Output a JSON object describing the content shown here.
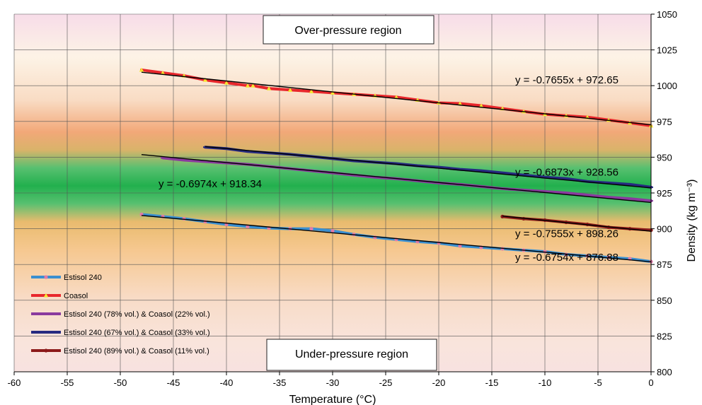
{
  "chart_data": {
    "type": "line",
    "xlabel": "Temperature (°C)",
    "ylabel": "Density (kg m⁻³)",
    "xlim": [
      -60,
      0
    ],
    "ylim": [
      800,
      1050
    ],
    "x_ticks": [
      -60,
      -55,
      -50,
      -45,
      -40,
      -35,
      -30,
      -25,
      -20,
      -15,
      -10,
      -5,
      0
    ],
    "y_ticks": [
      800,
      825,
      850,
      875,
      900,
      925,
      950,
      975,
      1000,
      1025,
      1050
    ],
    "grid": true,
    "legend_position": "bottom-left",
    "regions": {
      "over_label": "Over-pressure region",
      "under_label": "Under-pressure region"
    },
    "series": [
      {
        "name": "Estisol 240",
        "color": "#3a8fd0",
        "marker_color": "#e07aa8",
        "marker": "circle",
        "x": [
          -48,
          -46,
          -44,
          -42,
          -40,
          -38,
          -36,
          -34,
          -32,
          -30,
          -28,
          -26,
          -24,
          -22,
          -20,
          -18,
          -16,
          -14,
          -12,
          -10,
          -8,
          -6,
          -4,
          -2,
          0
        ],
        "y": [
          910,
          908.5,
          907,
          905,
          903,
          901.5,
          900.5,
          900,
          900,
          898.5,
          896,
          894,
          892.5,
          891,
          890,
          888,
          887,
          886,
          885,
          884,
          882,
          881,
          880,
          879,
          877
        ],
        "fit_label": "y = -0.6754x + 876.88",
        "fit": {
          "slope": -0.6754,
          "intercept": 876.88,
          "x_range": [
            -48,
            0
          ]
        }
      },
      {
        "name": "Coasol",
        "color": "#e8272c",
        "marker_color": "#f5e430",
        "marker": "triangle",
        "x": [
          -48,
          -46,
          -44,
          -42,
          -40,
          -38,
          -37.5,
          -36,
          -34,
          -32,
          -30,
          -28,
          -26,
          -24,
          -22,
          -20,
          -18,
          -16,
          -14,
          -12,
          -10,
          -8,
          -6,
          -4,
          -2,
          0
        ],
        "y": [
          1011,
          1009,
          1007,
          1004,
          1002,
          1000,
          1000,
          998,
          997,
          996,
          995,
          994,
          993,
          992,
          990,
          988,
          987.5,
          986,
          984,
          982,
          980,
          979,
          978,
          976,
          974,
          972
        ],
        "fit_label": "y = -0.7655x + 972.65",
        "fit": {
          "slope": -0.7655,
          "intercept": 972.65,
          "x_range": [
            -48,
            0
          ]
        }
      },
      {
        "name": "Estisol 240 (78% vol.) & Coasol (22% vol.)",
        "color": "#8a3a9e",
        "marker_color": "#8a3a9e",
        "marker": "dash",
        "x": [
          -46,
          -44,
          -42,
          -40,
          -38,
          -36,
          -34,
          -32,
          -30,
          -28,
          -26,
          -24,
          -22,
          -20,
          -18,
          -16,
          -14,
          -12,
          -10,
          -8,
          -6,
          -4,
          -2,
          0
        ],
        "y": [
          949.5,
          948,
          947,
          946,
          945,
          943.5,
          942,
          940.5,
          939,
          937.5,
          936,
          935,
          933.5,
          932,
          931,
          929.5,
          928,
          927,
          926,
          925,
          923.5,
          922,
          921,
          919.5
        ],
        "fit_label": "y = -0.6974x + 918.34",
        "fit": {
          "slope": -0.6974,
          "intercept": 918.34,
          "x_range": [
            -48,
            0
          ]
        }
      },
      {
        "name": "Estisol 240 (67% vol.) & Coasol (33% vol.)",
        "color": "#262a80",
        "marker_color": "#262a80",
        "marker": "dash",
        "x": [
          -42,
          -40,
          -38,
          -36,
          -34,
          -32,
          -30,
          -28,
          -26,
          -24,
          -22,
          -20,
          -18,
          -16,
          -14,
          -12,
          -10,
          -8,
          -6,
          -4,
          -2,
          0
        ],
        "y": [
          957,
          956,
          954,
          953,
          952,
          950.5,
          949,
          947.5,
          946.5,
          945.5,
          944,
          943,
          941.5,
          940.5,
          939,
          937.5,
          936,
          935,
          933,
          932,
          931,
          929
        ],
        "fit_label": "y = -0.6873x + 928.56",
        "fit": {
          "slope": -0.6873,
          "intercept": 928.56,
          "x_range": [
            -42,
            0
          ]
        }
      },
      {
        "name": "Estisol 240 (89% vol.) & Coasol (11% vol.)",
        "color": "#8c1a1a",
        "marker_color": "#8c1a1a",
        "marker": "circle",
        "x": [
          -14,
          -12,
          -10,
          -8,
          -6,
          -4,
          -2,
          0
        ],
        "y": [
          908.5,
          907,
          906,
          904.5,
          903,
          901,
          900,
          899
        ],
        "fit_label": "y = -0.7555x + 898.26",
        "fit": {
          "slope": -0.7555,
          "intercept": 898.26,
          "x_range": [
            -14,
            0
          ]
        }
      }
    ]
  }
}
